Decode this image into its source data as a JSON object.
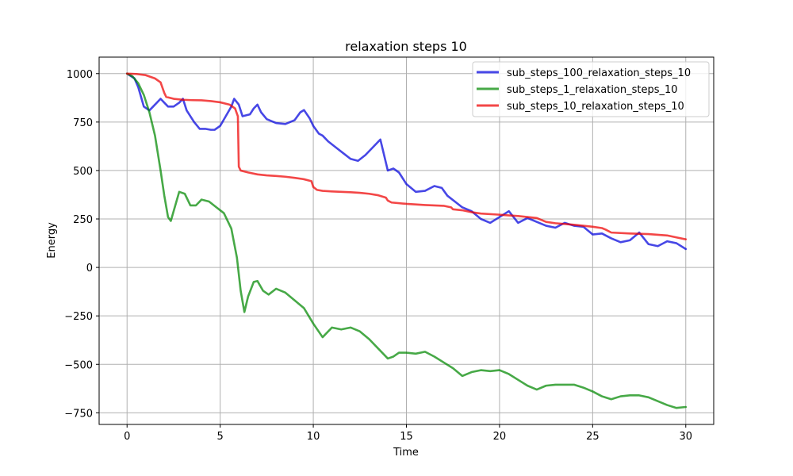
{
  "chart_data": {
    "type": "line",
    "title": "relaxation steps 10",
    "xlabel": "Time",
    "ylabel": "Energy",
    "xlim": [
      -1.5,
      31.5
    ],
    "ylim": [
      -810,
      1085
    ],
    "xticks": [
      0,
      5,
      10,
      15,
      20,
      25,
      30
    ],
    "yticks": [
      -750,
      -500,
      -250,
      0,
      250,
      500,
      750,
      1000
    ],
    "grid": true,
    "legend_position": "top-right",
    "series": [
      {
        "name": "sub_steps_100_relaxation_steps_10",
        "color": "#0000dd",
        "x": [
          0,
          0.4,
          0.6,
          0.9,
          1.2,
          1.4,
          1.8,
          2.0,
          2.2,
          2.5,
          2.8,
          3.0,
          3.2,
          3.6,
          3.9,
          4.2,
          4.5,
          4.7,
          5.0,
          5.3,
          5.6,
          5.75,
          6.0,
          6.2,
          6.6,
          6.8,
          7.0,
          7.2,
          7.5,
          8.0,
          8.5,
          9.0,
          9.3,
          9.5,
          9.8,
          10.0,
          10.3,
          10.5,
          10.8,
          11.2,
          11.6,
          12.0,
          12.4,
          12.8,
          13.2,
          13.6,
          14.0,
          14.3,
          14.6,
          15.0,
          15.5,
          16.0,
          16.5,
          16.9,
          17.2,
          17.6,
          18.0,
          18.5,
          19.0,
          19.5,
          20.0,
          20.5,
          21.0,
          21.5,
          22.0,
          22.5,
          23.0,
          23.5,
          24.0,
          24.5,
          25.0,
          25.5,
          26.0,
          26.5,
          27.0,
          27.5,
          28.0,
          28.5,
          29.0,
          29.5,
          30.0
        ],
        "y": [
          1000,
          975,
          930,
          830,
          810,
          830,
          870,
          850,
          830,
          830,
          850,
          870,
          810,
          750,
          715,
          715,
          710,
          710,
          730,
          780,
          830,
          870,
          840,
          780,
          790,
          820,
          840,
          800,
          765,
          745,
          740,
          760,
          800,
          812,
          770,
          730,
          690,
          680,
          650,
          620,
          590,
          560,
          550,
          580,
          620,
          660,
          500,
          510,
          490,
          430,
          390,
          395,
          420,
          410,
          370,
          340,
          310,
          290,
          250,
          230,
          260,
          290,
          230,
          255,
          235,
          215,
          205,
          230,
          215,
          210,
          170,
          175,
          150,
          130,
          140,
          180,
          120,
          110,
          135,
          125,
          95
        ]
      },
      {
        "name": "sub_steps_1_relaxation_steps_10",
        "color": "#008800",
        "x": [
          0,
          0.3,
          0.6,
          0.9,
          1.2,
          1.5,
          1.8,
          2.0,
          2.2,
          2.35,
          2.5,
          2.8,
          3.1,
          3.4,
          3.7,
          4.0,
          4.4,
          4.8,
          5.2,
          5.6,
          5.9,
          6.1,
          6.3,
          6.5,
          6.8,
          7.0,
          7.3,
          7.6,
          8.0,
          8.5,
          9.0,
          9.5,
          10.0,
          10.5,
          11.0,
          11.5,
          12.0,
          12.5,
          13.0,
          13.5,
          14.0,
          14.3,
          14.6,
          15.0,
          15.5,
          16.0,
          16.5,
          17.0,
          17.5,
          18.0,
          18.5,
          19.0,
          19.5,
          20.0,
          20.5,
          21.0,
          21.5,
          22.0,
          22.5,
          23.0,
          23.5,
          24.0,
          24.5,
          25.0,
          25.5,
          26.0,
          26.5,
          27.0,
          27.5,
          28.0,
          28.5,
          29.0,
          29.5,
          30.0
        ],
        "y": [
          1000,
          985,
          950,
          890,
          800,
          680,
          500,
          370,
          260,
          240,
          290,
          390,
          380,
          320,
          320,
          350,
          340,
          310,
          280,
          200,
          50,
          -120,
          -230,
          -150,
          -75,
          -70,
          -120,
          -140,
          -110,
          -130,
          -170,
          -210,
          -290,
          -360,
          -310,
          -320,
          -310,
          -330,
          -370,
          -420,
          -470,
          -460,
          -440,
          -440,
          -445,
          -435,
          -460,
          -490,
          -520,
          -560,
          -540,
          -530,
          -535,
          -530,
          -550,
          -580,
          -610,
          -630,
          -610,
          -605,
          -605,
          -605,
          -620,
          -640,
          -665,
          -680,
          -665,
          -660,
          -660,
          -670,
          -690,
          -710,
          -725,
          -720
        ]
      },
      {
        "name": "sub_steps_10_relaxation_steps_10",
        "color": "#ee0000",
        "x": [
          0,
          0.5,
          1.0,
          1.5,
          1.8,
          2.0,
          2.1,
          2.5,
          3.0,
          3.5,
          4.0,
          4.5,
          5.0,
          5.5,
          5.8,
          5.95,
          6.0,
          6.1,
          6.5,
          7.0,
          7.5,
          8.0,
          8.5,
          9.0,
          9.5,
          9.9,
          10.0,
          10.2,
          10.5,
          11.0,
          11.5,
          12.0,
          12.5,
          13.0,
          13.5,
          13.9,
          14.0,
          14.2,
          15.0,
          16.0,
          17.0,
          17.4,
          17.5,
          18.0,
          18.5,
          19.0,
          20.0,
          21.0,
          22.0,
          22.5,
          23.0,
          24.0,
          25.0,
          25.5,
          25.7,
          26.0,
          27.0,
          28.0,
          29.0,
          29.5,
          30.0
        ],
        "y": [
          1000,
          998,
          992,
          975,
          955,
          900,
          880,
          870,
          865,
          863,
          862,
          858,
          852,
          840,
          820,
          780,
          520,
          500,
          490,
          480,
          475,
          472,
          468,
          462,
          455,
          445,
          415,
          400,
          395,
          392,
          390,
          388,
          385,
          380,
          372,
          360,
          345,
          335,
          328,
          322,
          318,
          310,
          300,
          295,
          285,
          278,
          272,
          265,
          255,
          235,
          228,
          220,
          210,
          203,
          195,
          180,
          175,
          172,
          165,
          155,
          145
        ]
      }
    ]
  }
}
